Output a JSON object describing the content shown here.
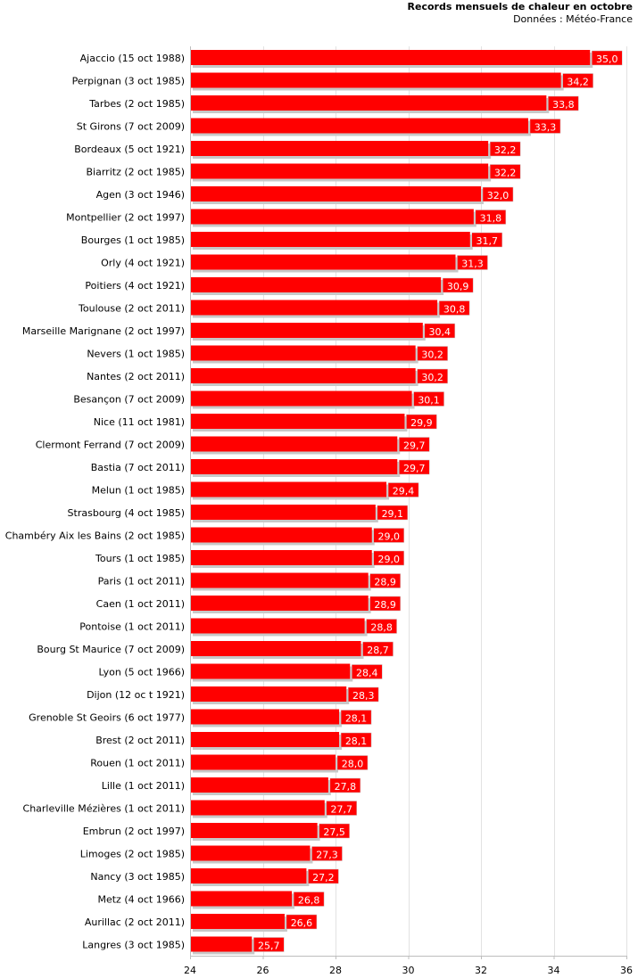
{
  "chart_data": {
    "type": "bar",
    "orientation": "horizontal",
    "title": "Records mensuels de chaleur en octobre",
    "subtitle": "Données : Météo-France",
    "xlim": [
      24,
      36
    ],
    "xticks": [
      24,
      26,
      28,
      30,
      32,
      34,
      36
    ],
    "grid": true,
    "colors": {
      "bar": "#ff0000",
      "shadow": "#c8c8c8",
      "value_text": "#ffffff"
    },
    "categories": [
      "Ajaccio (15 oct 1988)",
      "Perpignan (3 oct 1985)",
      "Tarbes (2 oct 1985)",
      "St Girons (7 oct 2009)",
      "Bordeaux (5 oct 1921)",
      "Biarritz (2 oct 1985)",
      "Agen (3 oct 1946)",
      "Montpellier (2 oct 1997)",
      "Bourges (1 oct 1985)",
      "Orly (4 oct 1921)",
      "Poitiers (4 oct 1921)",
      "Toulouse (2 oct 2011)",
      "Marseille Marignane (2 oct 1997)",
      "Nevers (1 oct 1985)",
      "Nantes (2 oct 2011)",
      "Besançon (7 oct 2009)",
      "Nice (11 oct 1981)",
      "Clermont Ferrand (7 oct 2009)",
      "Bastia (7 oct 2011)",
      "Melun (1 oct 1985)",
      "Strasbourg (4 oct 1985)",
      "Chambéry Aix les Bains (2 oct 1985)",
      "Tours (1 oct 1985)",
      "Paris (1 oct 2011)",
      "Caen (1 oct 2011)",
      "Pontoise (1 oct 2011)",
      "Bourg St Maurice (7 oct 2009)",
      "Lyon (5 oct 1966)",
      "Dijon (12 oc t 1921)",
      "Grenoble St Geoirs (6 oct 1977)",
      "Brest (2 oct 2011)",
      "Rouen (1 oct 2011)",
      "Lille (1 oct 2011)",
      "Charleville Mézières (1 oct 2011)",
      "Embrun (2 oct 1997)",
      "Limoges (2 oct 1985)",
      "Nancy (3 oct 1985)",
      "Metz (4 oct 1966)",
      "Aurillac (2 oct 2011)",
      "Langres (3 oct 1985)"
    ],
    "values": [
      35.0,
      34.2,
      33.8,
      33.3,
      32.2,
      32.2,
      32.0,
      31.8,
      31.7,
      31.3,
      30.9,
      30.8,
      30.4,
      30.2,
      30.2,
      30.1,
      29.9,
      29.7,
      29.7,
      29.4,
      29.1,
      29.0,
      29.0,
      28.9,
      28.9,
      28.8,
      28.7,
      28.4,
      28.3,
      28.1,
      28.1,
      28.0,
      27.8,
      27.7,
      27.5,
      27.3,
      27.2,
      26.8,
      26.6,
      25.7
    ],
    "value_labels": [
      "35,0",
      "34,2",
      "33,8",
      "33,3",
      "32,2",
      "32,2",
      "32,0",
      "31,8",
      "31,7",
      "31,3",
      "30,9",
      "30,8",
      "30,4",
      "30,2",
      "30,2",
      "30,1",
      "29,9",
      "29,7",
      "29,7",
      "29,4",
      "29,1",
      "29,0",
      "29,0",
      "28,9",
      "28,9",
      "28,8",
      "28,7",
      "28,4",
      "28,3",
      "28,1",
      "28,1",
      "28,0",
      "27,8",
      "27,7",
      "27,5",
      "27,3",
      "27,2",
      "26,8",
      "26,6",
      "25,7"
    ]
  }
}
